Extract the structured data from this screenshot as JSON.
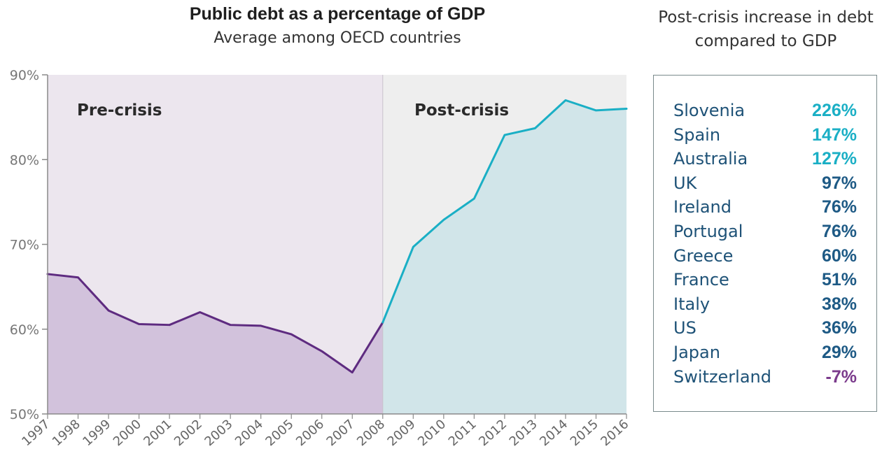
{
  "title": "Public debt as a percentage of GDP",
  "subtitle": "Average among OECD countries",
  "side_panel": {
    "title_lines": [
      "Post-crisis increase in debt",
      "compared to GDP"
    ],
    "rows": [
      {
        "country": "Slovenia",
        "value": "226%",
        "color": "#1aafc5"
      },
      {
        "country": "Spain",
        "value": "147%",
        "color": "#1aafc5"
      },
      {
        "country": "Australia",
        "value": "127%",
        "color": "#1aafc5"
      },
      {
        "country": "UK",
        "value": "97%",
        "color": "#1e5a85"
      },
      {
        "country": "Ireland",
        "value": "76%",
        "color": "#1e5a85"
      },
      {
        "country": "Portugal",
        "value": "76%",
        "color": "#1e5a85"
      },
      {
        "country": "Greece",
        "value": "60%",
        "color": "#1e5a85"
      },
      {
        "country": "France",
        "value": "51%",
        "color": "#1e5a85"
      },
      {
        "country": "Italy",
        "value": "38%",
        "color": "#1e5a85"
      },
      {
        "country": "US",
        "value": "36%",
        "color": "#1e5a85"
      },
      {
        "country": "Japan",
        "value": "29%",
        "color": "#1e5a85"
      },
      {
        "country": "Switzerland",
        "value": "-7%",
        "color": "#7b3b8c"
      }
    ]
  },
  "chart_data": {
    "type": "area",
    "title": "Public debt as a percentage of GDP",
    "subtitle": "Average among OECD countries",
    "x": [
      "1997",
      "1998",
      "1999",
      "2000",
      "2001",
      "2002",
      "2003",
      "2004",
      "2005",
      "2006",
      "2007",
      "2008",
      "2009",
      "2010",
      "2011",
      "2012",
      "2013",
      "2014",
      "2015",
      "2016"
    ],
    "ylim": [
      50,
      90
    ],
    "yticks": [
      50,
      60,
      70,
      80,
      90
    ],
    "ytick_labels": [
      "50%",
      "60%",
      "70%",
      "80%",
      "90%"
    ],
    "grid": false,
    "regions": [
      {
        "label": "Pre-crisis",
        "from": "1997",
        "to": "2008",
        "bg_color": "#ece6ee",
        "fill_color": "#d2c2dc",
        "line_color": "#5e2b80"
      },
      {
        "label": "Post-crisis",
        "from": "2008",
        "to": "2016",
        "bg_color": "#eeeeee",
        "fill_color": "#d1e5e9",
        "line_color": "#1aafc5"
      }
    ],
    "series": [
      {
        "values": [
          66.5,
          66.1,
          62.2,
          60.6,
          60.5,
          62.0,
          60.5,
          60.4,
          59.4,
          57.4,
          54.9,
          60.8,
          69.7,
          72.9,
          75.4,
          82.9,
          83.7,
          87.0,
          85.8,
          86.0
        ]
      }
    ]
  }
}
